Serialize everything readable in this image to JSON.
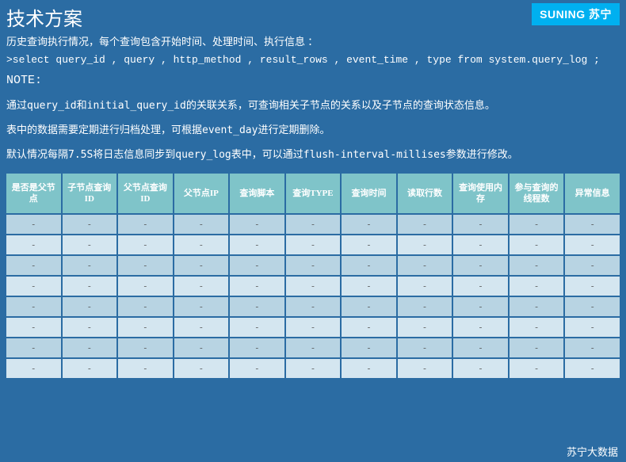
{
  "title": "技术方案",
  "logo": "SUNING 苏宁",
  "heading": "历史查询执行情况，每个查询包含开始时间、处理时间、执行信息 ：",
  "sql": ">select query_id , query , http_method , result_rows , event_time , type from system.query_log ;",
  "note_label": "NOTE:",
  "para1": "通过query_id和initial_query_id的关联关系，可查询相关子节点的关系以及子节点的查询状态信息。",
  "para2": "表中的数据需要定期进行归档处理，可根据event_day进行定期删除。",
  "para3": "默认情况每隔7.5S将日志信息同步到query_log表中，可以通过flush-interval-millises参数进行修改。",
  "table": {
    "columns": [
      "是否是父节点",
      "子节点查询ID",
      "父节点查询ID",
      "父节点IP",
      "查询脚本",
      "查询TYPE",
      "查询时间",
      "读取行数",
      "查询使用内存",
      "参与查询的线程数",
      "异常信息"
    ],
    "cell_value": "-",
    "row_count": 8,
    "header_bg": "#7fc4c9",
    "row_odd_bg": "#b8d4e3",
    "row_even_bg": "#d4e6f0"
  },
  "footer": "苏宁大数据",
  "colors": {
    "page_bg": "#2b6ca3",
    "logo_bg": "#00b0f0",
    "text": "#ffffff"
  }
}
